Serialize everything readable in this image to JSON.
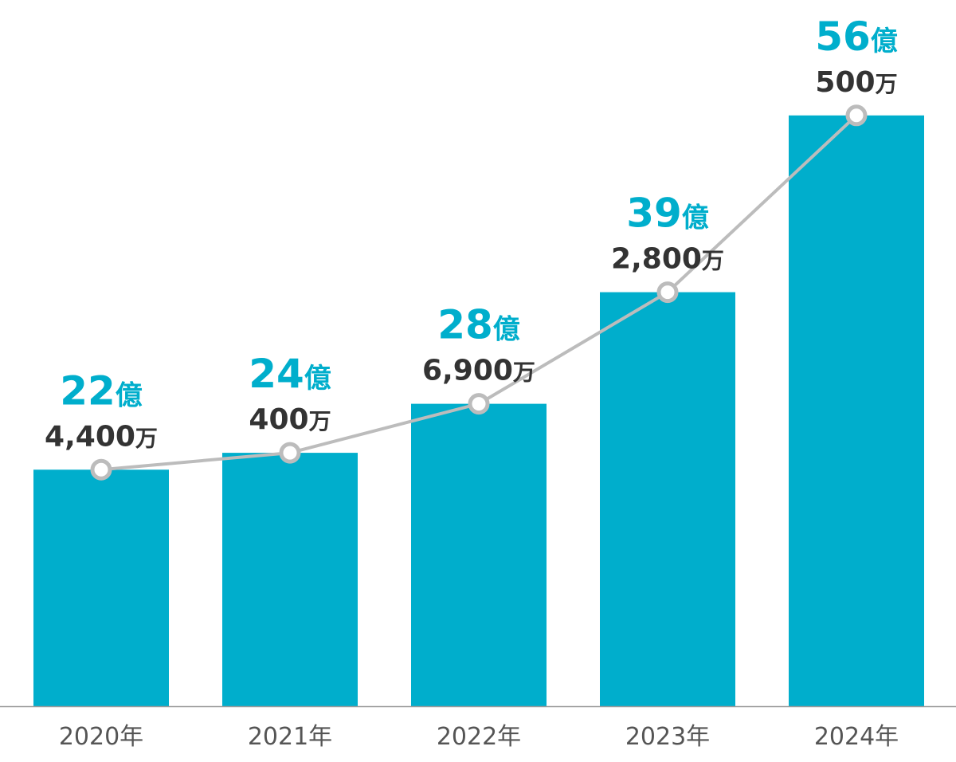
{
  "chart_data": {
    "type": "bar",
    "categories": [
      "2020年",
      "2021年",
      "2022年",
      "2023年",
      "2024年"
    ],
    "values": [
      224400,
      240400,
      286900,
      392800,
      560500
    ],
    "value_unit": "万",
    "labels": [
      {
        "major": "22",
        "major_unit": "億",
        "minor": "4,400",
        "minor_unit": "万"
      },
      {
        "major": "24",
        "major_unit": "億",
        "minor": "400",
        "minor_unit": "万"
      },
      {
        "major": "28",
        "major_unit": "億",
        "minor": "6,900",
        "minor_unit": "万"
      },
      {
        "major": "39",
        "major_unit": "億",
        "minor": "2,800",
        "minor_unit": "万"
      },
      {
        "major": "56",
        "major_unit": "億",
        "minor": "500",
        "minor_unit": "万"
      }
    ],
    "ylim": [
      0,
      670000
    ],
    "grid": false,
    "legend": "none",
    "overlay_line": true,
    "colors": {
      "bar": "#00aecc",
      "line": "#bcbcbc",
      "marker_fill": "#ffffff",
      "major_text": "#00aecc",
      "minor_text": "#333333",
      "tick_text": "#555555",
      "axis": "#9a9a9a"
    }
  }
}
